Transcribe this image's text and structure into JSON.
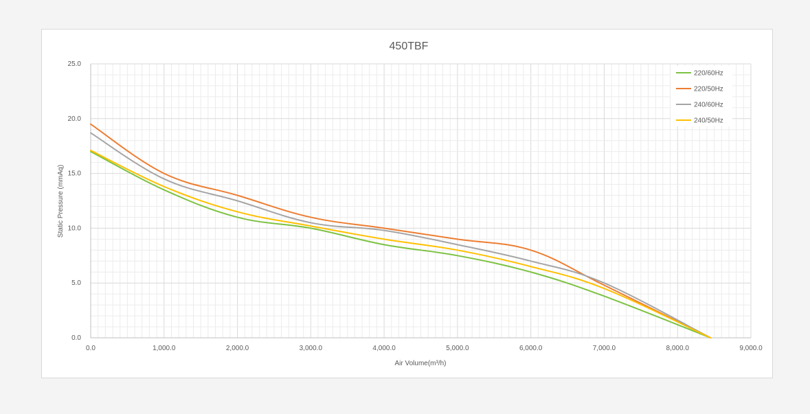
{
  "chart_data": {
    "type": "line",
    "title": "450TBF",
    "xlabel": "Air Volume(m³/h)",
    "ylabel": "Static Pressure (mmAq)",
    "xlim": [
      0,
      9000
    ],
    "ylim": [
      0,
      25
    ],
    "x_ticks": [
      "0.0",
      "1,000.0",
      "2,000.0",
      "3,000.0",
      "4,000.0",
      "5,000.0",
      "6,000.0",
      "7,000.0",
      "8,000.0",
      "9,000.0"
    ],
    "y_ticks": [
      "0.0",
      "5.0",
      "10.0",
      "15.0",
      "20.0",
      "25.0"
    ],
    "grid": true,
    "legend_position": "top-right",
    "series": [
      {
        "name": "220/60Hz",
        "color": "#7cc242",
        "points": [
          [
            0,
            17.0
          ],
          [
            1000,
            13.5
          ],
          [
            2000,
            11.0
          ],
          [
            3000,
            10.0
          ],
          [
            4000,
            8.5
          ],
          [
            5000,
            7.5
          ],
          [
            6000,
            6.0
          ],
          [
            7000,
            3.8
          ],
          [
            8450,
            0.0
          ]
        ]
      },
      {
        "name": "220/50Hz",
        "color": "#ed7d31",
        "points": [
          [
            0,
            19.5
          ],
          [
            1000,
            15.0
          ],
          [
            2000,
            13.0
          ],
          [
            3000,
            11.0
          ],
          [
            4000,
            10.0
          ],
          [
            5000,
            9.0
          ],
          [
            6000,
            8.0
          ],
          [
            7000,
            4.8
          ],
          [
            8450,
            0.0
          ]
        ]
      },
      {
        "name": "240/60Hz",
        "color": "#a5a5a5",
        "points": [
          [
            0,
            18.7
          ],
          [
            1000,
            14.5
          ],
          [
            2000,
            12.5
          ],
          [
            3000,
            10.5
          ],
          [
            4000,
            9.8
          ],
          [
            5000,
            8.5
          ],
          [
            6000,
            7.0
          ],
          [
            7000,
            5.0
          ],
          [
            8450,
            0.0
          ]
        ]
      },
      {
        "name": "240/50Hz",
        "color": "#ffc000",
        "points": [
          [
            0,
            17.1
          ],
          [
            1000,
            13.8
          ],
          [
            2000,
            11.5
          ],
          [
            3000,
            10.2
          ],
          [
            4000,
            9.0
          ],
          [
            5000,
            8.0
          ],
          [
            6000,
            6.5
          ],
          [
            7000,
            4.5
          ],
          [
            8450,
            0.0
          ]
        ]
      }
    ]
  }
}
